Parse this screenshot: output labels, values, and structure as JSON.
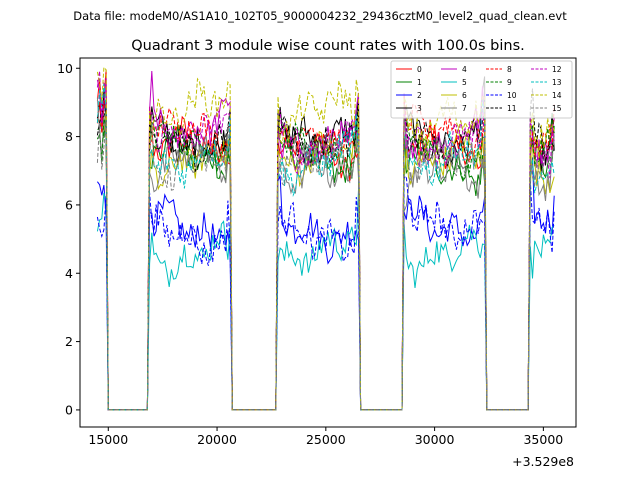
{
  "figure": {
    "suptitle": "Data file: modeM0/AS1A10_102T05_9000004232_29436cztM0_level2_quad_clean.evt",
    "offset_label": "+3.529e8"
  },
  "chart_data": {
    "type": "line",
    "title": "Quadrant 3 module wise count rates with 100.0s bins.",
    "xlabel": "",
    "ylabel": "",
    "x_offset": 352900000,
    "xlim": [
      13700,
      36500
    ],
    "ylim": [
      -0.5,
      10.3
    ],
    "xticks": [
      15000,
      20000,
      25000,
      30000,
      35000
    ],
    "xtick_labels": [
      "15000",
      "20000",
      "25000",
      "30000",
      "35000"
    ],
    "yticks": [
      0,
      2,
      4,
      6,
      8,
      10
    ],
    "ytick_labels": [
      "0",
      "2",
      "4",
      "6",
      "8",
      "10"
    ],
    "grid": false,
    "legend_position": "top-right",
    "legend_columns": 4,
    "segments": [
      {
        "start": 14500,
        "end": 14900
      },
      {
        "start": 16900,
        "end": 20600
      },
      {
        "start": 22800,
        "end": 26500
      },
      {
        "start": 28600,
        "end": 32300
      },
      {
        "start": 34400,
        "end": 35500
      }
    ],
    "series": [
      {
        "name": "0",
        "color": "#ff0000",
        "dash": "solid",
        "level": 7.6,
        "segment_levels": [
          8.9,
          7.6,
          7.4,
          7.5,
          7.3
        ]
      },
      {
        "name": "1",
        "color": "#008000",
        "dash": "solid",
        "level": 7.4,
        "segment_levels": [
          8.3,
          7.4,
          7.3,
          7.2,
          7.0
        ]
      },
      {
        "name": "2",
        "color": "#0000ff",
        "dash": "solid",
        "level": 5.6,
        "segment_levels": [
          6.2,
          5.4,
          5.3,
          5.5,
          5.6
        ]
      },
      {
        "name": "3",
        "color": "#000000",
        "dash": "solid",
        "level": 8.0,
        "segment_levels": [
          8.6,
          8.0,
          8.2,
          8.1,
          7.6
        ]
      },
      {
        "name": "4",
        "color": "#bf00bf",
        "dash": "solid",
        "level": 8.2,
        "segment_levels": [
          8.5,
          8.4,
          7.9,
          8.0,
          7.8
        ]
      },
      {
        "name": "5",
        "color": "#00bfbf",
        "dash": "solid",
        "level": 4.8,
        "segment_levels": [
          5.3,
          4.6,
          4.7,
          4.6,
          4.8
        ]
      },
      {
        "name": "6",
        "color": "#bfbf00",
        "dash": "solid",
        "level": 7.3,
        "segment_levels": [
          7.8,
          7.2,
          7.3,
          7.3,
          7.0
        ]
      },
      {
        "name": "7",
        "color": "#808080",
        "dash": "solid",
        "level": 7.1,
        "segment_levels": [
          7.5,
          7.1,
          6.8,
          6.8,
          6.6
        ]
      },
      {
        "name": "8",
        "color": "#ff0000",
        "dash": "dashed",
        "level": 7.8,
        "segment_levels": [
          8.4,
          8.0,
          7.8,
          8.0,
          7.6
        ]
      },
      {
        "name": "9",
        "color": "#008000",
        "dash": "dashed",
        "level": 7.5,
        "segment_levels": [
          8.1,
          7.6,
          7.5,
          7.5,
          7.3
        ]
      },
      {
        "name": "10",
        "color": "#0000ff",
        "dash": "dashed",
        "level": 5.2,
        "segment_levels": [
          5.9,
          5.1,
          5.2,
          5.6,
          5.2
        ]
      },
      {
        "name": "11",
        "color": "#000000",
        "dash": "dashed",
        "level": 7.9,
        "segment_levels": [
          8.5,
          7.9,
          8.0,
          8.1,
          7.8
        ]
      },
      {
        "name": "12",
        "color": "#bf00bf",
        "dash": "dashed",
        "level": 8.0,
        "segment_levels": [
          8.3,
          8.3,
          7.9,
          8.0,
          7.7
        ]
      },
      {
        "name": "13",
        "color": "#00bfbf",
        "dash": "dashed",
        "level": 7.4,
        "segment_levels": [
          8.0,
          7.4,
          7.3,
          7.4,
          7.1
        ]
      },
      {
        "name": "14",
        "color": "#bfbf00",
        "dash": "dashed",
        "level": 8.6,
        "segment_levels": [
          8.7,
          8.8,
          8.7,
          8.3,
          8.2
        ]
      },
      {
        "name": "15",
        "color": "#808080",
        "dash": "dashed",
        "level": 7.0,
        "segment_levels": [
          7.6,
          7.0,
          7.2,
          7.1,
          6.9
        ]
      }
    ]
  }
}
